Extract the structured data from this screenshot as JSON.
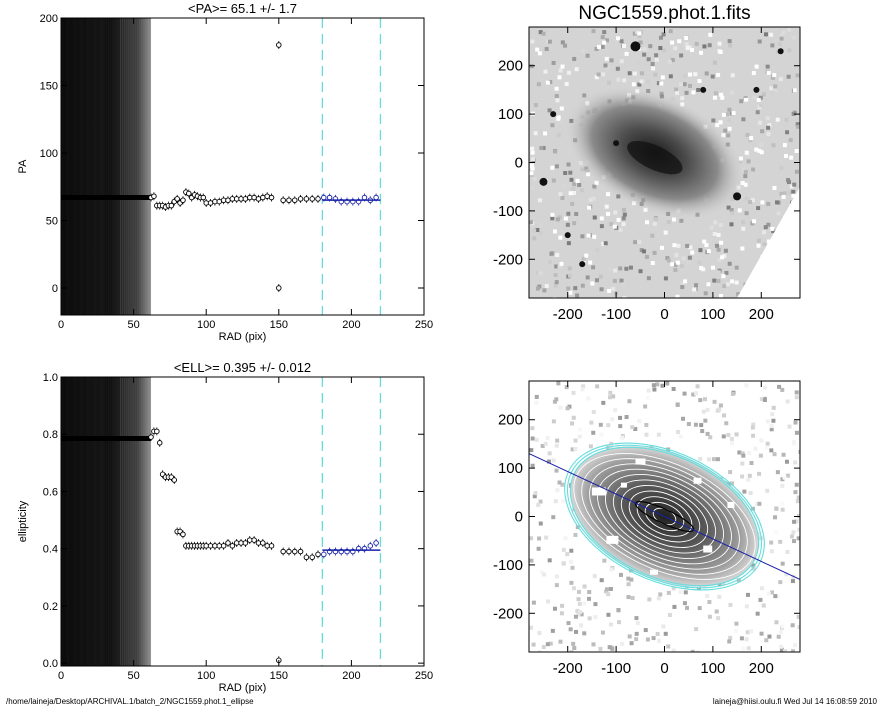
{
  "footer": {
    "path": "/home/laineja/Desktop/ARCHIVAL.1/batch_2/NGC1559.phot.1_ellipse",
    "stamp": "laineja@hiisi.oulu.fi  Wed Jul 14 16:08:59 2010"
  },
  "colors": {
    "fit": "#1a22a8",
    "window": "#66dddd",
    "points": "#000000"
  },
  "chart_data": [
    {
      "type": "scatter",
      "title": "<PA>=  65.1 +/-   1.7",
      "xlabel": "RAD (pix)",
      "ylabel": "PA",
      "xlim": [
        0,
        250
      ],
      "ylim": [
        -20,
        200
      ],
      "xticks": [
        0,
        50,
        100,
        150,
        200,
        250
      ],
      "yticks": [
        0,
        50,
        100,
        150,
        200
      ],
      "window": [
        180,
        220
      ],
      "inner_dense": {
        "x_from": 0,
        "x_to": 62,
        "y": 67
      },
      "fit": {
        "x": [
          180,
          220
        ],
        "y": 65.1
      },
      "points": [
        {
          "x": 62,
          "y": 67
        },
        {
          "x": 64,
          "y": 68
        },
        {
          "x": 66,
          "y": 61
        },
        {
          "x": 68,
          "y": 61
        },
        {
          "x": 70,
          "y": 61
        },
        {
          "x": 72,
          "y": 60
        },
        {
          "x": 74,
          "y": 61
        },
        {
          "x": 76,
          "y": 61
        },
        {
          "x": 78,
          "y": 64
        },
        {
          "x": 80,
          "y": 66
        },
        {
          "x": 82,
          "y": 63
        },
        {
          "x": 84,
          "y": 65
        },
        {
          "x": 86,
          "y": 71
        },
        {
          "x": 88,
          "y": 70
        },
        {
          "x": 90,
          "y": 67
        },
        {
          "x": 92,
          "y": 69
        },
        {
          "x": 94,
          "y": 68
        },
        {
          "x": 96,
          "y": 67
        },
        {
          "x": 98,
          "y": 67
        },
        {
          "x": 100,
          "y": 63
        },
        {
          "x": 103,
          "y": 63
        },
        {
          "x": 106,
          "y": 64
        },
        {
          "x": 109,
          "y": 64
        },
        {
          "x": 112,
          "y": 65
        },
        {
          "x": 115,
          "y": 65
        },
        {
          "x": 118,
          "y": 66
        },
        {
          "x": 121,
          "y": 66
        },
        {
          "x": 124,
          "y": 66
        },
        {
          "x": 127,
          "y": 66
        },
        {
          "x": 130,
          "y": 67
        },
        {
          "x": 133,
          "y": 67
        },
        {
          "x": 136,
          "y": 66
        },
        {
          "x": 139,
          "y": 67
        },
        {
          "x": 142,
          "y": 68
        },
        {
          "x": 145,
          "y": 67
        },
        {
          "x": 150,
          "y": 180
        },
        {
          "x": 150,
          "y": 0
        },
        {
          "x": 153,
          "y": 65
        },
        {
          "x": 157,
          "y": 65
        },
        {
          "x": 161,
          "y": 65
        },
        {
          "x": 165,
          "y": 66
        },
        {
          "x": 169,
          "y": 66
        },
        {
          "x": 173,
          "y": 66
        },
        {
          "x": 177,
          "y": 66
        },
        {
          "x": 181,
          "y": 67
        },
        {
          "x": 185,
          "y": 67
        },
        {
          "x": 189,
          "y": 66
        },
        {
          "x": 193,
          "y": 64
        },
        {
          "x": 197,
          "y": 64
        },
        {
          "x": 201,
          "y": 64
        },
        {
          "x": 205,
          "y": 64
        },
        {
          "x": 209,
          "y": 67
        },
        {
          "x": 213,
          "y": 65
        },
        {
          "x": 217,
          "y": 67
        }
      ]
    },
    {
      "type": "scatter",
      "title": "<ELL>= 0.395 +/-  0.012",
      "xlabel": "RAD (pix)",
      "ylabel": "ellipticity",
      "xlim": [
        0,
        250
      ],
      "ylim": [
        -0.01,
        1.0
      ],
      "xticks": [
        0,
        50,
        100,
        150,
        200,
        250
      ],
      "yticks": [
        0.0,
        0.2,
        0.4,
        0.6,
        0.8,
        1.0
      ],
      "ytick_labels": [
        "0.0",
        "0.2",
        "0.4",
        "0.6",
        "0.8",
        "1.0"
      ],
      "window": [
        180,
        220
      ],
      "inner_dense": {
        "x_from": 0,
        "x_to": 62,
        "y": 0.785
      },
      "fit": {
        "x": [
          180,
          220
        ],
        "y": 0.395
      },
      "points": [
        {
          "x": 62,
          "y": 0.79
        },
        {
          "x": 64,
          "y": 0.81
        },
        {
          "x": 66,
          "y": 0.81
        },
        {
          "x": 68,
          "y": 0.77
        },
        {
          "x": 70,
          "y": 0.66
        },
        {
          "x": 72,
          "y": 0.65
        },
        {
          "x": 74,
          "y": 0.65
        },
        {
          "x": 76,
          "y": 0.65
        },
        {
          "x": 78,
          "y": 0.64
        },
        {
          "x": 80,
          "y": 0.46
        },
        {
          "x": 82,
          "y": 0.46
        },
        {
          "x": 84,
          "y": 0.45
        },
        {
          "x": 86,
          "y": 0.41
        },
        {
          "x": 88,
          "y": 0.41
        },
        {
          "x": 90,
          "y": 0.41
        },
        {
          "x": 92,
          "y": 0.41
        },
        {
          "x": 94,
          "y": 0.41
        },
        {
          "x": 96,
          "y": 0.41
        },
        {
          "x": 98,
          "y": 0.41
        },
        {
          "x": 100,
          "y": 0.41
        },
        {
          "x": 103,
          "y": 0.41
        },
        {
          "x": 106,
          "y": 0.41
        },
        {
          "x": 109,
          "y": 0.41
        },
        {
          "x": 112,
          "y": 0.41
        },
        {
          "x": 115,
          "y": 0.42
        },
        {
          "x": 118,
          "y": 0.41
        },
        {
          "x": 121,
          "y": 0.42
        },
        {
          "x": 124,
          "y": 0.42
        },
        {
          "x": 127,
          "y": 0.42
        },
        {
          "x": 130,
          "y": 0.43
        },
        {
          "x": 133,
          "y": 0.43
        },
        {
          "x": 136,
          "y": 0.42
        },
        {
          "x": 139,
          "y": 0.42
        },
        {
          "x": 142,
          "y": 0.41
        },
        {
          "x": 145,
          "y": 0.41
        },
        {
          "x": 150,
          "y": 0.01
        },
        {
          "x": 153,
          "y": 0.39
        },
        {
          "x": 157,
          "y": 0.39
        },
        {
          "x": 161,
          "y": 0.39
        },
        {
          "x": 165,
          "y": 0.39
        },
        {
          "x": 169,
          "y": 0.37
        },
        {
          "x": 173,
          "y": 0.37
        },
        {
          "x": 177,
          "y": 0.38
        },
        {
          "x": 181,
          "y": 0.38
        },
        {
          "x": 185,
          "y": 0.39
        },
        {
          "x": 189,
          "y": 0.39
        },
        {
          "x": 193,
          "y": 0.39
        },
        {
          "x": 197,
          "y": 0.39
        },
        {
          "x": 201,
          "y": 0.39
        },
        {
          "x": 205,
          "y": 0.4
        },
        {
          "x": 209,
          "y": 0.4
        },
        {
          "x": 213,
          "y": 0.41
        },
        {
          "x": 217,
          "y": 0.42
        }
      ]
    },
    {
      "type": "heatmap",
      "title": "NGC1559.phot.1.fits",
      "xlim": [
        -280,
        280
      ],
      "ylim": [
        -280,
        280
      ],
      "xticks": [
        -200,
        -100,
        0,
        100,
        200
      ],
      "yticks": [
        -200,
        -100,
        0,
        100,
        200
      ]
    },
    {
      "type": "heatmap",
      "title": "",
      "xlim": [
        -280,
        280
      ],
      "ylim": [
        -280,
        280
      ],
      "xticks": [
        -200,
        -100,
        0,
        100,
        200
      ],
      "yticks": [
        -200,
        -100,
        0,
        100,
        200
      ],
      "major_axis_pa": 65.1,
      "ellipticity": 0.395
    }
  ]
}
